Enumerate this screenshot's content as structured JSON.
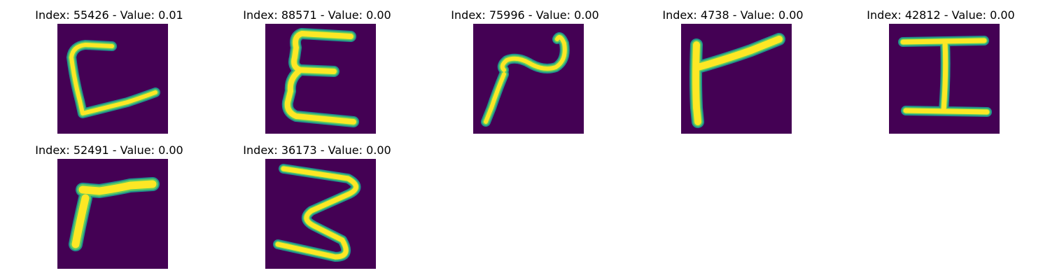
{
  "figure": {
    "colormap": "viridis",
    "background_color": "#440154",
    "stroke_color": "#fde725",
    "panels": [
      {
        "title": "Index: 55426 - Value: 0.01",
        "glyph": "glyph-c-shape"
      },
      {
        "title": "Index: 88571 - Value: 0.00",
        "glyph": "glyph-epsilon-shape"
      },
      {
        "title": "Index: 75996 - Value: 0.00",
        "glyph": "glyph-n-shape"
      },
      {
        "title": "Index: 4738 - Value: 0.00",
        "glyph": "glyph-r-shape"
      },
      {
        "title": "Index: 42812 - Value: 0.00",
        "glyph": "glyph-i-shape"
      },
      {
        "title": "Index: 52491 - Value: 0.00",
        "glyph": "glyph-r-shape"
      },
      {
        "title": "Index: 36173 - Value: 0.00",
        "glyph": "glyph-3-shape"
      }
    ]
  }
}
